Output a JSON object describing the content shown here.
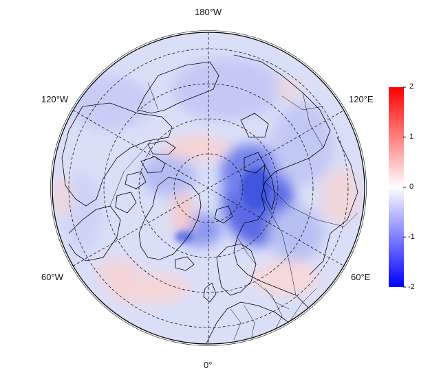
{
  "map": {
    "projection": "north-polar-stereographic",
    "longitude_labels": {
      "top": "180°W",
      "bottom": "0°",
      "upper_left": "120°W",
      "upper_right": "120°E",
      "lower_left": "60°W",
      "lower_right": "60°E"
    },
    "graticule": "dashed",
    "coastlines": true,
    "country_borders": true
  },
  "colorbar": {
    "ticks": [
      "2",
      "1",
      "0",
      "-1",
      "-2"
    ],
    "colors": {
      "max": "#ff0000",
      "mid": "#ffffff",
      "min": "#0000ff"
    },
    "range": [
      -2,
      2
    ]
  },
  "field_features": [
    {
      "region": "Kara Sea / western Siberia",
      "sign": "negative",
      "magnitude": "strong"
    },
    {
      "region": "central Canadian Arctic",
      "sign": "positive",
      "magnitude": "weak"
    },
    {
      "region": "East Greenland",
      "sign": "negative",
      "magnitude": "moderate"
    },
    {
      "region": "North Atlantic",
      "sign": "positive",
      "magnitude": "weak"
    },
    {
      "region": "Eastern Europe",
      "sign": "positive",
      "magnitude": "weak"
    },
    {
      "region": "northern Pacific and Alaska",
      "sign": "negative",
      "magnitude": "weak"
    }
  ]
}
